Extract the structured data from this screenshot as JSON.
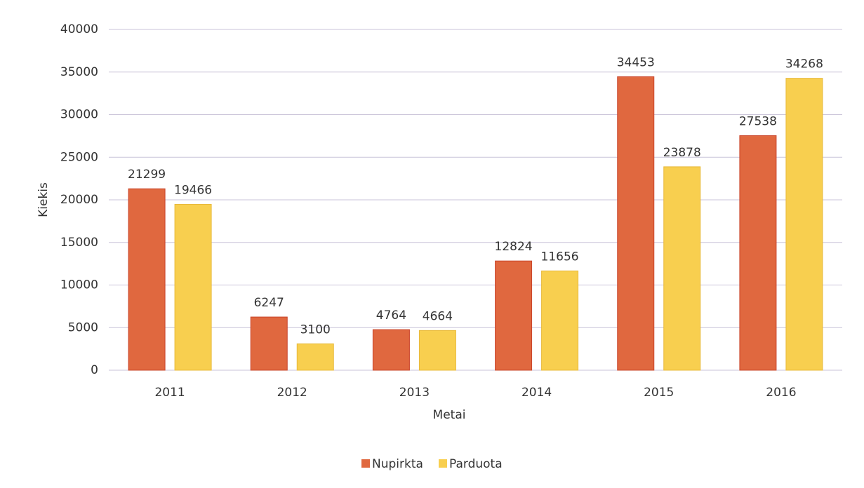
{
  "chart_data": {
    "type": "bar",
    "categories": [
      "2011",
      "2012",
      "2013",
      "2014",
      "2015",
      "2016"
    ],
    "series": [
      {
        "name": "Nupirkta",
        "color": "#e0683f",
        "values": [
          21299,
          6247,
          4764,
          12824,
          34453,
          27538
        ]
      },
      {
        "name": "Parduota",
        "color": "#f8cf4f",
        "values": [
          19466,
          3100,
          4664,
          11656,
          23878,
          34268
        ]
      }
    ],
    "xlabel": "Metai",
    "ylabel": "Kiekis",
    "ylim": [
      0,
      40000
    ],
    "yticks": [
      0,
      5000,
      10000,
      15000,
      20000,
      25000,
      30000,
      35000,
      40000
    ],
    "grid": true,
    "legend": "bottom"
  }
}
